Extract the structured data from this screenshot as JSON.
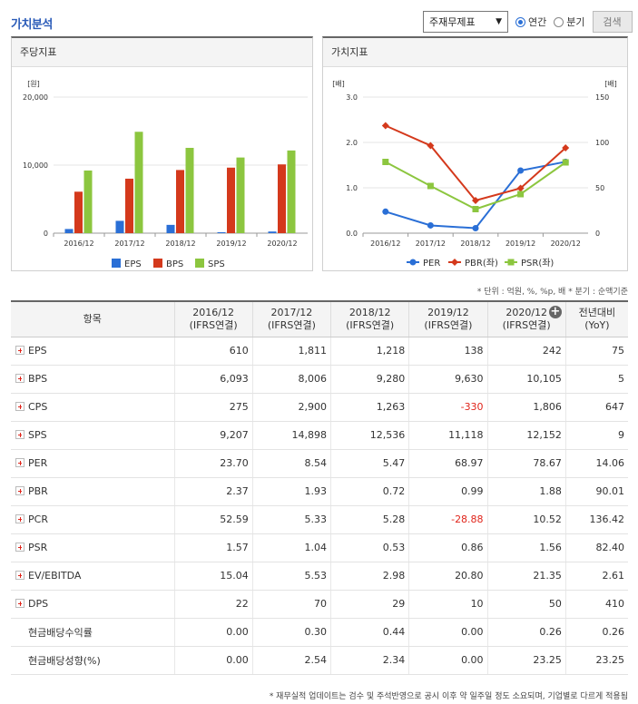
{
  "header": {
    "title": "가치분석"
  },
  "controls": {
    "select_value": "주재무제표",
    "radio_annual": "연간",
    "radio_quarter": "분기",
    "search_label": "검색"
  },
  "panel_left": {
    "title": "주당지표"
  },
  "panel_right": {
    "title": "가치지표"
  },
  "chart_data": [
    {
      "type": "bar",
      "title": "주당지표",
      "ylabel": "[원]",
      "categories": [
        "2016/12",
        "2017/12",
        "2018/12",
        "2019/12",
        "2020/12"
      ],
      "ylim": [
        0,
        20000
      ],
      "yticks": [
        "0",
        "10,000",
        "20,000"
      ],
      "series": [
        {
          "name": "EPS",
          "color": "#2a6fd6",
          "values": [
            610,
            1811,
            1218,
            138,
            242
          ]
        },
        {
          "name": "BPS",
          "color": "#d4391c",
          "values": [
            6093,
            8006,
            9280,
            9630,
            10105
          ]
        },
        {
          "name": "SPS",
          "color": "#8cc63f",
          "values": [
            9207,
            14898,
            12536,
            11118,
            12152
          ]
        }
      ],
      "legend": "bottom"
    },
    {
      "type": "line",
      "title": "가치지표",
      "ylabel_left": "[배]",
      "ylabel_right": "[배]",
      "categories": [
        "2016/12",
        "2017/12",
        "2018/12",
        "2019/12",
        "2020/12"
      ],
      "ylim_left": [
        0,
        3
      ],
      "ylim_right": [
        0,
        150
      ],
      "yticks_left": [
        "0.0",
        "1.0",
        "2.0",
        "3.0"
      ],
      "yticks_right": [
        "0",
        "50",
        "100",
        "150"
      ],
      "series": [
        {
          "name": "PER",
          "color": "#2a6fd6",
          "axis": "right",
          "marker": "circle",
          "values": [
            23.7,
            8.54,
            5.47,
            68.97,
            78.67
          ]
        },
        {
          "name": "PBR(좌)",
          "color": "#d4391c",
          "axis": "left",
          "marker": "diamond",
          "values": [
            2.37,
            1.93,
            0.72,
            0.99,
            1.88
          ]
        },
        {
          "name": "PSR(좌)",
          "color": "#8cc63f",
          "axis": "left",
          "marker": "square",
          "values": [
            1.57,
            1.04,
            0.53,
            0.86,
            1.56
          ]
        }
      ],
      "legend": "bottom"
    }
  ],
  "notes": "* 단위 : 억원, %, %p, 배   * 분기 : 순액기준",
  "table": {
    "head_item": "항목",
    "columns": [
      {
        "line1": "2016/12",
        "line2": "(IFRS연결)"
      },
      {
        "line1": "2017/12",
        "line2": "(IFRS연결)"
      },
      {
        "line1": "2018/12",
        "line2": "(IFRS연결)"
      },
      {
        "line1": "2019/12",
        "line2": "(IFRS연결)"
      },
      {
        "line1": "2020/12",
        "line2": "(IFRS연결)"
      },
      {
        "line1": "전년대비",
        "line2": "(YoY)"
      }
    ],
    "rows": [
      {
        "label": "EPS",
        "expand": true,
        "values": [
          "610",
          "1,811",
          "1,218",
          "138",
          "242",
          "75"
        ]
      },
      {
        "label": "BPS",
        "expand": true,
        "values": [
          "6,093",
          "8,006",
          "9,280",
          "9,630",
          "10,105",
          "5"
        ]
      },
      {
        "label": "CPS",
        "expand": true,
        "values": [
          "275",
          "2,900",
          "1,263",
          "-330",
          "1,806",
          "647"
        ]
      },
      {
        "label": "SPS",
        "expand": true,
        "values": [
          "9,207",
          "14,898",
          "12,536",
          "11,118",
          "12,152",
          "9"
        ]
      },
      {
        "label": "PER",
        "expand": true,
        "values": [
          "23.70",
          "8.54",
          "5.47",
          "68.97",
          "78.67",
          "14.06"
        ]
      },
      {
        "label": "PBR",
        "expand": true,
        "values": [
          "2.37",
          "1.93",
          "0.72",
          "0.99",
          "1.88",
          "90.01"
        ]
      },
      {
        "label": "PCR",
        "expand": true,
        "values": [
          "52.59",
          "5.33",
          "5.28",
          "-28.88",
          "10.52",
          "136.42"
        ]
      },
      {
        "label": "PSR",
        "expand": true,
        "values": [
          "1.57",
          "1.04",
          "0.53",
          "0.86",
          "1.56",
          "82.40"
        ]
      },
      {
        "label": "EV/EBITDA",
        "expand": true,
        "values": [
          "15.04",
          "5.53",
          "2.98",
          "20.80",
          "21.35",
          "2.61"
        ]
      },
      {
        "label": "DPS",
        "expand": true,
        "values": [
          "22",
          "70",
          "29",
          "10",
          "50",
          "410"
        ]
      },
      {
        "label": "현금배당수익률",
        "expand": false,
        "values": [
          "0.00",
          "0.30",
          "0.44",
          "0.00",
          "0.26",
          "0.26"
        ]
      },
      {
        "label": "현금배당성향(%)",
        "expand": false,
        "values": [
          "0.00",
          "2.54",
          "2.34",
          "0.00",
          "23.25",
          "23.25"
        ]
      }
    ]
  },
  "footnote": "* 재무실적 업데이트는 검수 및 주석반영으로 공시 이후 약 일주일 정도 소요되며, 기업별로 다르게 적용됨"
}
